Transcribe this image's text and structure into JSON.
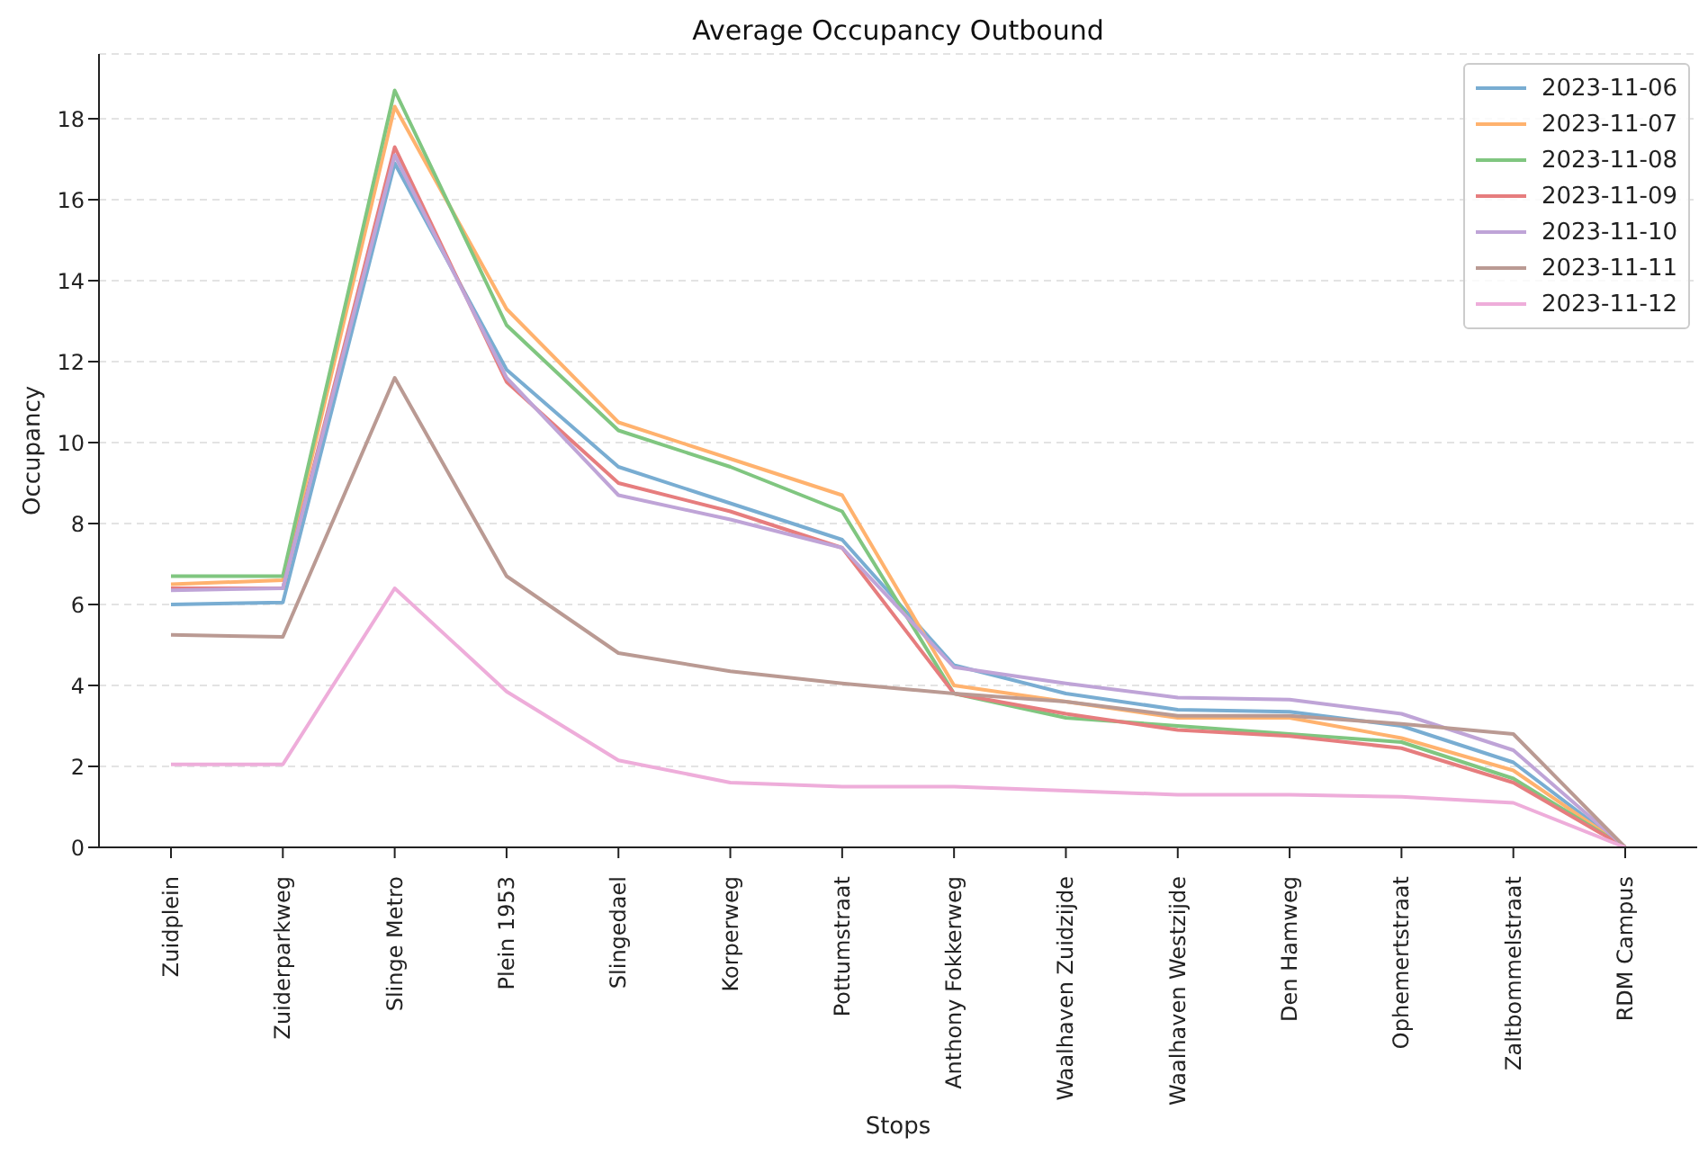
{
  "chart_data": {
    "type": "line",
    "title": "Average Occupancy Outbound",
    "xlabel": "Stops",
    "ylabel": "Occupancy",
    "categories": [
      "Zuidplein",
      "Zuiderparkweg",
      "Slinge Metro",
      "Plein 1953",
      "Slingedael",
      "Korperweg",
      "Pottumstraat",
      "Anthony Fokkerweg",
      "Waalhaven Zuidzijde",
      "Waalhaven Westzijde",
      "Den Hamweg",
      "Ophemertstraat",
      "Zaltbommelstraat",
      "RDM Campus"
    ],
    "series": [
      {
        "name": "2023-11-06",
        "color": "#79add2",
        "values": [
          6.0,
          6.05,
          16.9,
          11.8,
          9.4,
          8.5,
          7.6,
          4.5,
          3.8,
          3.4,
          3.35,
          3.0,
          2.1,
          0
        ]
      },
      {
        "name": "2023-11-07",
        "color": "#ffb26e",
        "values": [
          6.5,
          6.6,
          18.3,
          13.3,
          10.5,
          9.6,
          8.7,
          4.0,
          3.6,
          3.2,
          3.2,
          2.7,
          1.9,
          0
        ]
      },
      {
        "name": "2023-11-08",
        "color": "#80c680",
        "values": [
          6.7,
          6.7,
          18.7,
          12.9,
          10.3,
          9.4,
          8.3,
          3.8,
          3.2,
          3.0,
          2.8,
          2.6,
          1.7,
          0
        ]
      },
      {
        "name": "2023-11-09",
        "color": "#e67d7e",
        "values": [
          6.4,
          6.4,
          17.3,
          11.5,
          9.0,
          8.3,
          7.4,
          3.8,
          3.3,
          2.9,
          2.75,
          2.45,
          1.6,
          0
        ]
      },
      {
        "name": "2023-11-10",
        "color": "#bfa4d7",
        "values": [
          6.35,
          6.4,
          17.1,
          11.6,
          8.7,
          8.1,
          7.4,
          4.45,
          4.05,
          3.7,
          3.65,
          3.3,
          2.4,
          0
        ]
      },
      {
        "name": "2023-11-11",
        "color": "#ba9a93",
        "values": [
          5.25,
          5.2,
          11.6,
          6.7,
          4.8,
          4.35,
          4.05,
          3.8,
          3.6,
          3.25,
          3.25,
          3.05,
          2.8,
          0
        ]
      },
      {
        "name": "2023-11-12",
        "color": "#eeadda",
        "values": [
          2.05,
          2.05,
          6.4,
          3.85,
          2.15,
          1.6,
          1.5,
          1.5,
          1.4,
          1.3,
          1.3,
          1.25,
          1.1,
          0
        ]
      }
    ],
    "ylim": [
      0,
      19.6
    ],
    "yticks": [
      0,
      2,
      4,
      6,
      8,
      10,
      12,
      14,
      16,
      18
    ],
    "grid": "y",
    "legend": "top right",
    "marker": "none",
    "line_style": "solid"
  }
}
